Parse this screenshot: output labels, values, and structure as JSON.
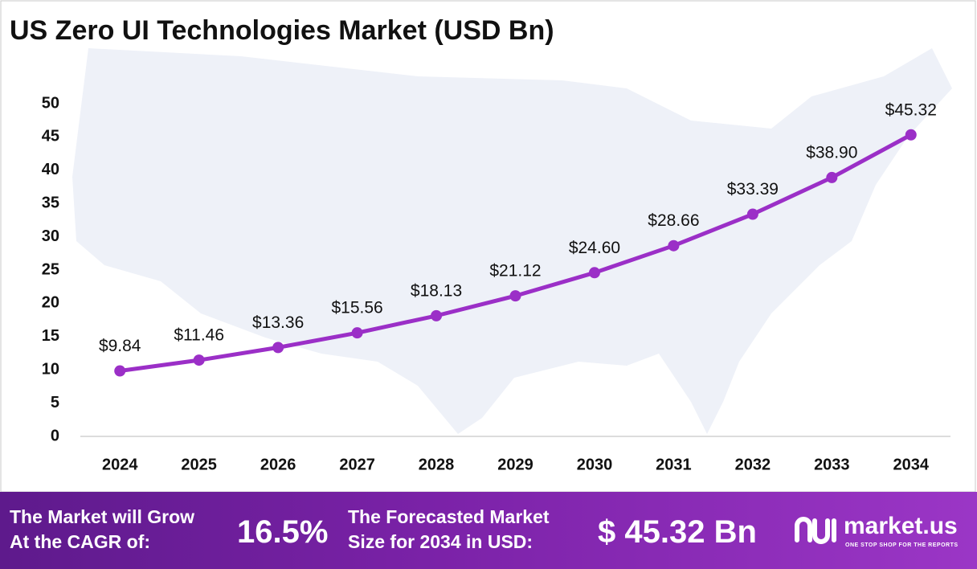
{
  "chart_data": {
    "type": "line",
    "title": "US Zero UI Technologies Market (USD Bn)",
    "categories": [
      "2024",
      "2025",
      "2026",
      "2027",
      "2028",
      "2029",
      "2030",
      "2031",
      "2032",
      "2033",
      "2034"
    ],
    "values": [
      9.84,
      11.46,
      13.36,
      15.56,
      18.13,
      21.12,
      24.6,
      28.66,
      33.39,
      38.9,
      45.32
    ],
    "value_labels": [
      "$9.84",
      "$11.46",
      "$13.36",
      "$15.56",
      "$18.13",
      "$21.12",
      "$24.60",
      "$28.66",
      "$33.39",
      "$38.90",
      "$45.32"
    ],
    "color": "#9b2fc7",
    "ylim": [
      0,
      50
    ],
    "yticks": [
      0,
      5,
      10,
      15,
      20,
      25,
      30,
      35,
      40,
      45,
      50
    ],
    "grid": false
  },
  "footer": {
    "growth_label": [
      "The Market will Grow",
      "At the CAGR of:"
    ],
    "cagr": "16.5%",
    "forecast_label": [
      "The Forecasted Market",
      "Size for 2034 in USD:"
    ],
    "forecast": "$ 45.32 Bn",
    "brand": "market.us",
    "tagline": "ONE STOP SHOP FOR THE REPORTS"
  }
}
